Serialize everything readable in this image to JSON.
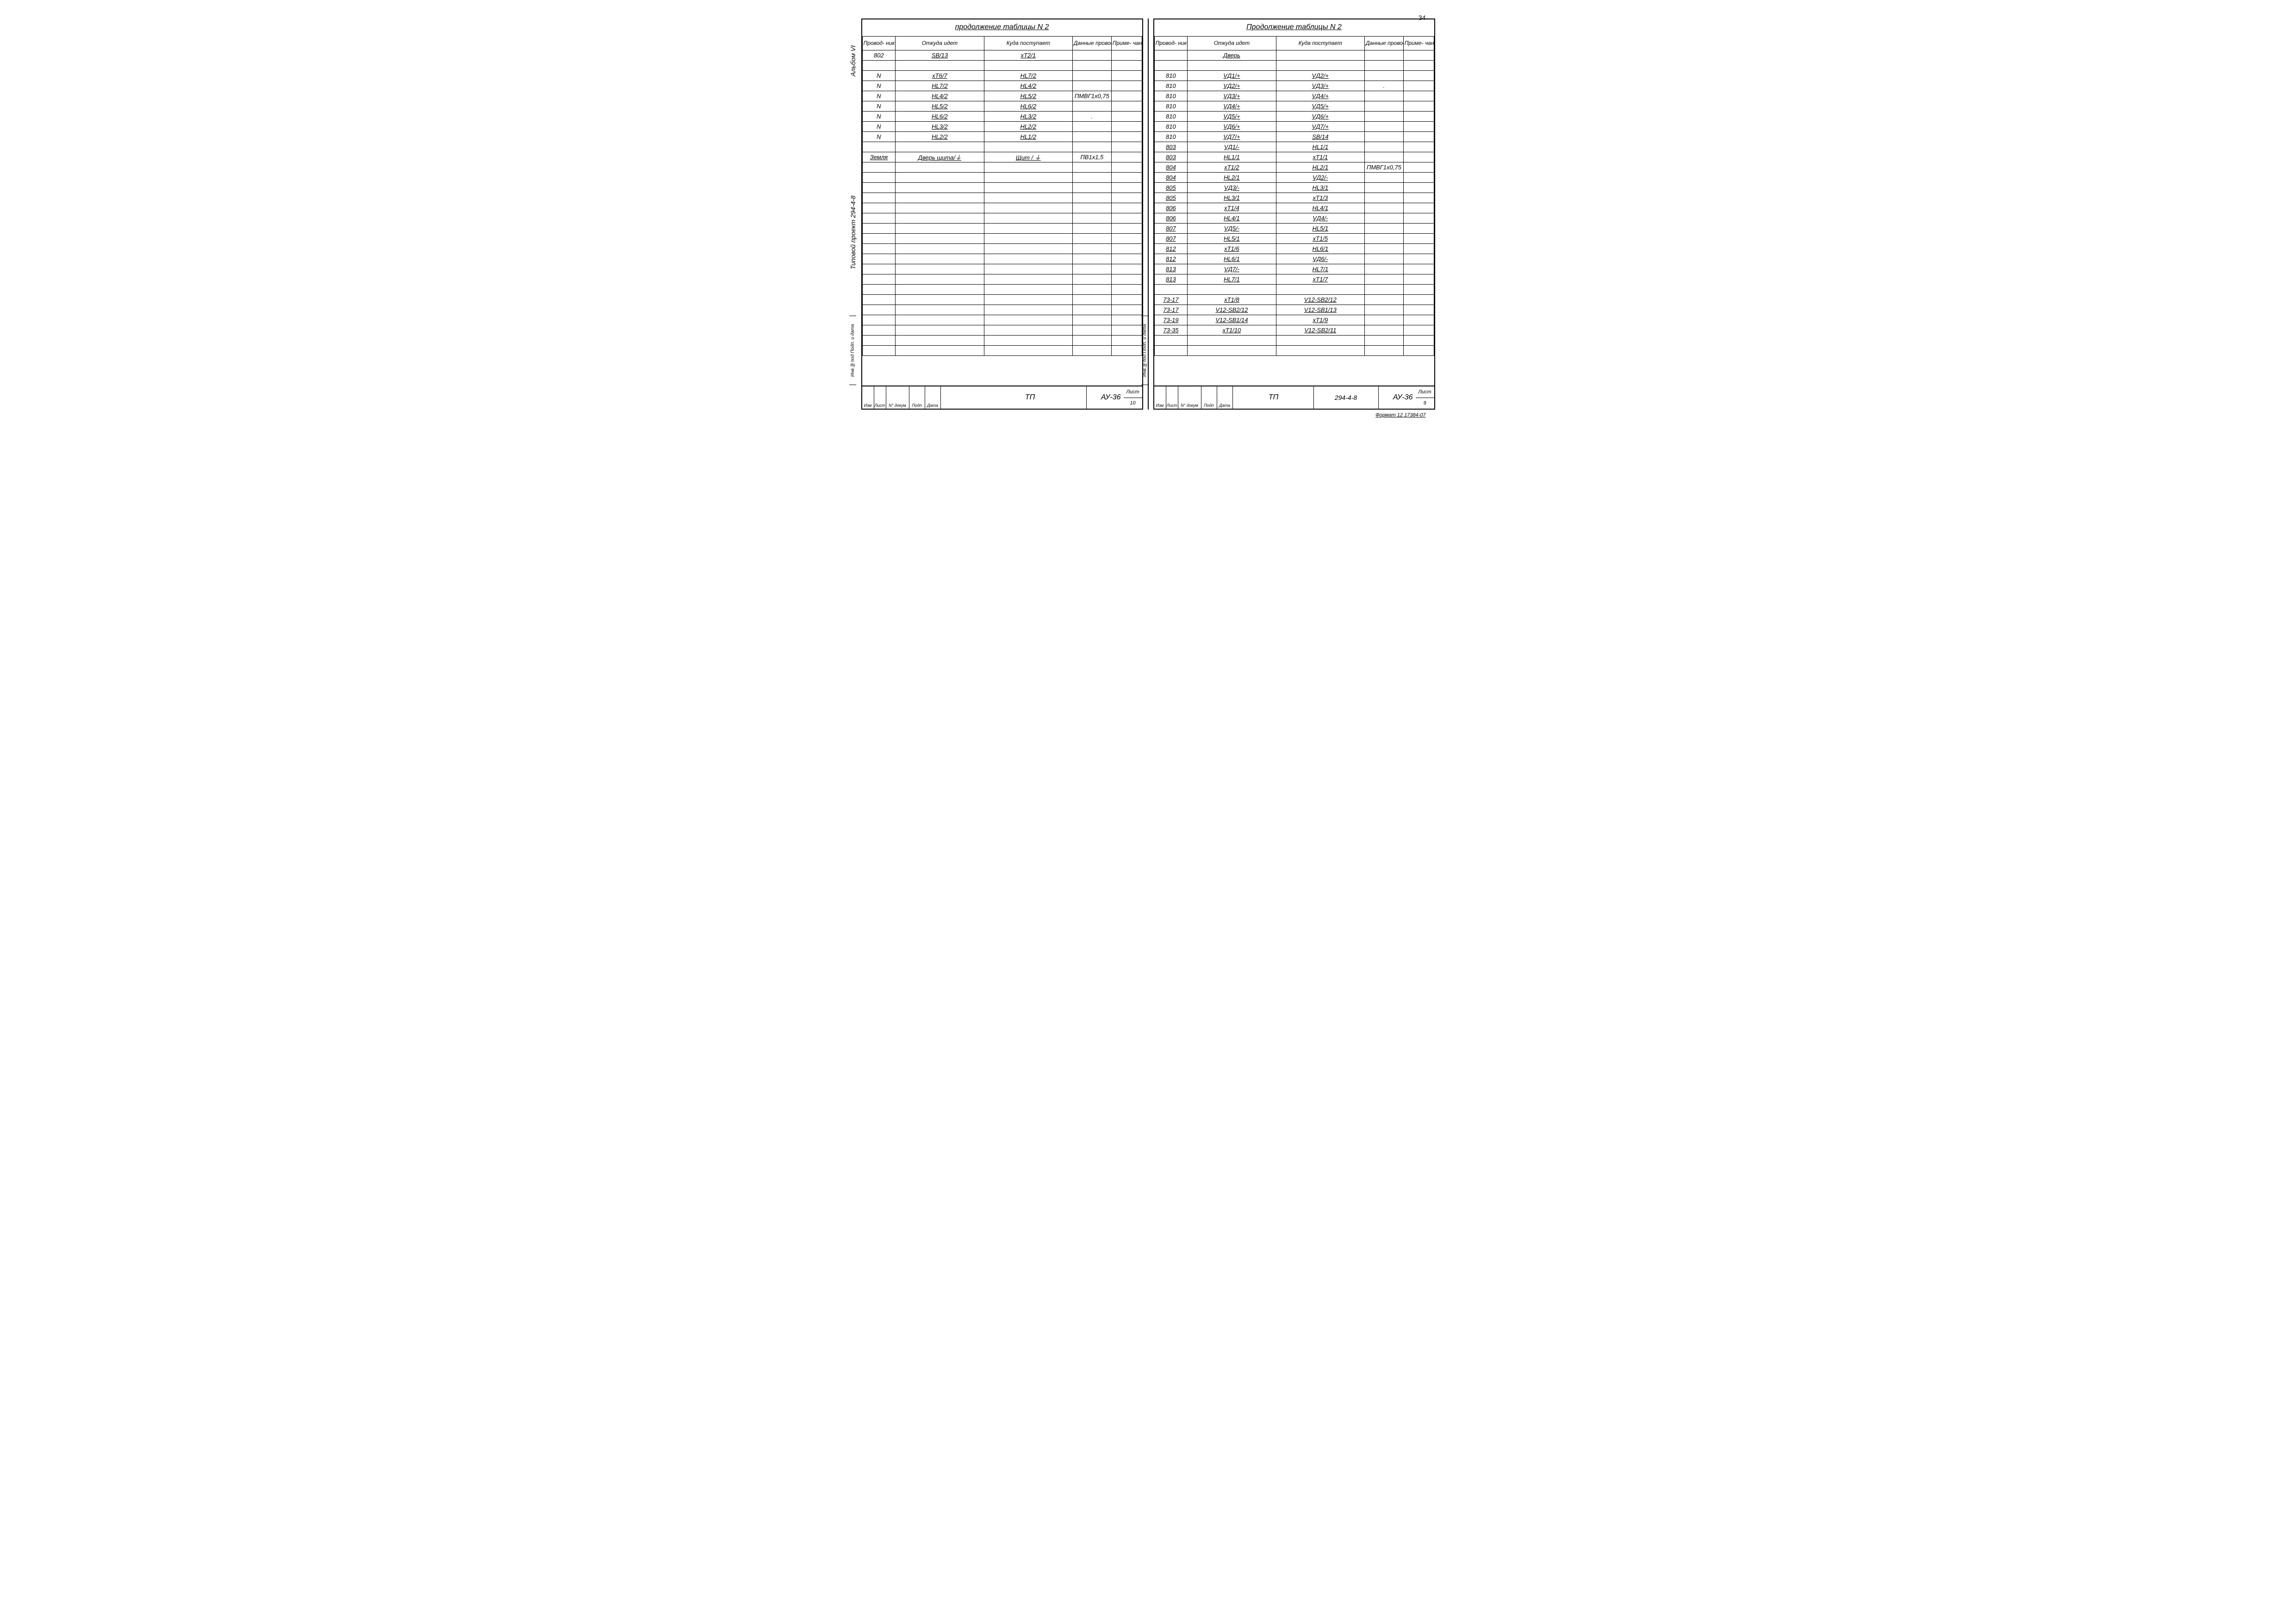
{
  "pageNumTop": "34",
  "footerNote": "Формат 12\n17384-07",
  "leftPanel": {
    "vText1": "Альбом VI",
    "vText2": "Типовой проект 294-4-8",
    "vText3": "Инв.№под Подп. и дата",
    "caption": "продолжение таблицы N 2",
    "headers": [
      "Провод-\nник",
      "Откуда идет",
      "Куда поступает",
      "Данные\nпровода",
      "Приме-\nчание"
    ],
    "rows": [
      {
        "c": [
          "802",
          "SB/13",
          "xT2/1",
          "",
          ""
        ],
        "u": [
          0,
          1,
          1,
          0,
          0
        ]
      },
      {
        "c": [
          "",
          "",
          "",
          "",
          ""
        ],
        "u": [
          0,
          0,
          0,
          0,
          0
        ]
      },
      {
        "c": [
          "N",
          "xT6/7",
          "HL7/2",
          "",
          ""
        ],
        "u": [
          0,
          1,
          1,
          0,
          0
        ]
      },
      {
        "c": [
          "N",
          "HL7/2",
          "HL4/2",
          "",
          ""
        ],
        "u": [
          0,
          1,
          1,
          0,
          0
        ]
      },
      {
        "c": [
          "N",
          "HL4/2",
          "HL5/2",
          "ПМВГ1x0,75",
          ""
        ],
        "u": [
          0,
          1,
          1,
          0,
          0
        ]
      },
      {
        "c": [
          "N",
          "HL5/2",
          "HL6/2",
          "",
          ""
        ],
        "u": [
          0,
          1,
          1,
          0,
          0
        ]
      },
      {
        "c": [
          "N",
          "HL6/2",
          "HL3/2",
          ".",
          ""
        ],
        "u": [
          0,
          1,
          1,
          0,
          0
        ]
      },
      {
        "c": [
          "N",
          "HL3/2",
          "HL2/2",
          "",
          ""
        ],
        "u": [
          0,
          1,
          1,
          0,
          0
        ]
      },
      {
        "c": [
          "N",
          "HL2/2",
          "HL1/2",
          "",
          ""
        ],
        "u": [
          0,
          1,
          1,
          0,
          0
        ]
      },
      {
        "c": [
          "",
          "",
          "",
          "",
          ""
        ],
        "u": [
          0,
          0,
          0,
          0,
          0
        ]
      },
      {
        "c": [
          "Земля",
          "Дверь щита/⏚",
          "Щит / ⏚",
          "ПВ1x1,5",
          ""
        ],
        "u": [
          1,
          1,
          1,
          0,
          0
        ]
      },
      {
        "c": [
          "",
          "",
          "",
          "",
          ""
        ],
        "u": [
          0,
          0,
          0,
          0,
          0
        ]
      },
      {
        "c": [
          "",
          "",
          "",
          "",
          ""
        ],
        "u": [
          0,
          0,
          0,
          0,
          0
        ]
      },
      {
        "c": [
          "",
          "",
          "",
          "",
          ""
        ],
        "u": [
          0,
          0,
          0,
          0,
          0
        ]
      },
      {
        "c": [
          "",
          "",
          "",
          "",
          ""
        ],
        "u": [
          0,
          0,
          0,
          0,
          0
        ]
      },
      {
        "c": [
          "",
          "",
          "",
          "",
          ""
        ],
        "u": [
          0,
          0,
          0,
          0,
          0
        ]
      },
      {
        "c": [
          "",
          "",
          "",
          "",
          ""
        ],
        "u": [
          0,
          0,
          0,
          0,
          0
        ]
      },
      {
        "c": [
          "",
          "",
          "",
          "",
          ""
        ],
        "u": [
          0,
          0,
          0,
          0,
          0
        ]
      },
      {
        "c": [
          "",
          "",
          "",
          "",
          ""
        ],
        "u": [
          0,
          0,
          0,
          0,
          0
        ]
      },
      {
        "c": [
          "",
          "",
          "",
          "",
          ""
        ],
        "u": [
          0,
          0,
          0,
          0,
          0
        ]
      },
      {
        "c": [
          "",
          "",
          "",
          "",
          ""
        ],
        "u": [
          0,
          0,
          0,
          0,
          0
        ]
      },
      {
        "c": [
          "",
          "",
          "",
          "",
          ""
        ],
        "u": [
          0,
          0,
          0,
          0,
          0
        ]
      },
      {
        "c": [
          "",
          "",
          "",
          "",
          ""
        ],
        "u": [
          0,
          0,
          0,
          0,
          0
        ]
      },
      {
        "c": [
          "",
          "",
          "",
          "",
          ""
        ],
        "u": [
          0,
          0,
          0,
          0,
          0
        ]
      },
      {
        "c": [
          "",
          "",
          "",
          "",
          ""
        ],
        "u": [
          0,
          0,
          0,
          0,
          0
        ]
      },
      {
        "c": [
          "",
          "",
          "",
          "",
          ""
        ],
        "u": [
          0,
          0,
          0,
          0,
          0
        ]
      },
      {
        "c": [
          "",
          "",
          "",
          "",
          ""
        ],
        "u": [
          0,
          0,
          0,
          0,
          0
        ]
      },
      {
        "c": [
          "",
          "",
          "",
          "",
          ""
        ],
        "u": [
          0,
          0,
          0,
          0,
          0
        ]
      },
      {
        "c": [
          "",
          "",
          "",
          "",
          ""
        ],
        "u": [
          0,
          0,
          0,
          0,
          0
        ]
      },
      {
        "c": [
          "",
          "",
          "",
          "",
          ""
        ],
        "u": [
          0,
          0,
          0,
          0,
          0
        ]
      }
    ],
    "titleBlock": {
      "smallCells": [
        "Изм",
        "Лист",
        "N° докум",
        "Подп",
        "Дата"
      ],
      "main": "ТП",
      "proj": "",
      "code": "АУ-36",
      "sheetLabel": "Лист",
      "sheetNum": "10"
    }
  },
  "rightPanel": {
    "vText3": "Инв.№под Подп. и дата",
    "caption": "Продолжение таблицы N 2",
    "headers": [
      "Провод-\nник",
      "Откуда идет",
      "Куда поступает",
      "Данные\nпровода",
      "Приме-\nчание"
    ],
    "rows": [
      {
        "c": [
          "",
          "Дверь",
          "",
          "",
          ""
        ],
        "u": [
          0,
          1,
          0,
          0,
          0
        ]
      },
      {
        "c": [
          "",
          "",
          "",
          "",
          ""
        ],
        "u": [
          0,
          0,
          0,
          0,
          0
        ]
      },
      {
        "c": [
          "810",
          "VД1/+",
          "VД2/+",
          "",
          ""
        ],
        "u": [
          0,
          1,
          1,
          0,
          0
        ]
      },
      {
        "c": [
          "810",
          "VД2/+",
          "VД3/+",
          ".",
          ""
        ],
        "u": [
          0,
          1,
          1,
          0,
          0
        ]
      },
      {
        "c": [
          "810",
          "VД3/+",
          "VД4/+",
          "",
          ""
        ],
        "u": [
          0,
          1,
          1,
          0,
          0
        ]
      },
      {
        "c": [
          "810",
          "VД4/+",
          "VД5/+",
          "",
          ""
        ],
        "u": [
          0,
          1,
          1,
          0,
          0
        ]
      },
      {
        "c": [
          "810",
          "VД5/+",
          "VД6/+",
          "",
          ""
        ],
        "u": [
          0,
          1,
          1,
          0,
          0
        ]
      },
      {
        "c": [
          "810",
          "VД6/+",
          "VД7/+",
          "",
          ""
        ],
        "u": [
          0,
          1,
          1,
          0,
          0
        ]
      },
      {
        "c": [
          "810",
          "VД7/+",
          "SB/14",
          "",
          ""
        ],
        "u": [
          0,
          1,
          1,
          0,
          0
        ]
      },
      {
        "c": [
          "803",
          "VД1/-",
          "HL1/1",
          "",
          ""
        ],
        "u": [
          1,
          1,
          1,
          0,
          0
        ]
      },
      {
        "c": [
          "803",
          "HL1/1",
          "xT1/1",
          "",
          ""
        ],
        "u": [
          1,
          1,
          1,
          0,
          0
        ]
      },
      {
        "c": [
          "804",
          "xT1/2",
          "HL2/1",
          "ПМВГ1x0,75",
          ""
        ],
        "u": [
          1,
          1,
          1,
          0,
          0
        ]
      },
      {
        "c": [
          "804",
          "HL2/1",
          "VД2/-",
          "",
          ""
        ],
        "u": [
          1,
          1,
          1,
          0,
          0
        ]
      },
      {
        "c": [
          "805",
          "VД3/-",
          "HL3/1",
          "",
          ""
        ],
        "u": [
          1,
          1,
          1,
          0,
          0
        ]
      },
      {
        "c": [
          "805",
          "HL3/1",
          "xT1/3",
          "",
          ""
        ],
        "u": [
          1,
          1,
          1,
          0,
          0
        ]
      },
      {
        "c": [
          "806",
          "xT1/4",
          "HL4/1",
          "",
          ""
        ],
        "u": [
          1,
          1,
          1,
          0,
          0
        ]
      },
      {
        "c": [
          "806",
          "HL4/1",
          "VД4/-",
          "",
          ""
        ],
        "u": [
          1,
          1,
          1,
          0,
          0
        ]
      },
      {
        "c": [
          "807",
          "VД5/-",
          "HL5/1",
          "",
          ""
        ],
        "u": [
          1,
          1,
          1,
          0,
          0
        ]
      },
      {
        "c": [
          "807",
          "HL5/1",
          "xT1/5",
          "",
          ""
        ],
        "u": [
          1,
          1,
          1,
          0,
          0
        ]
      },
      {
        "c": [
          "812",
          "xT1/6",
          "HL6/1",
          "",
          ""
        ],
        "u": [
          1,
          1,
          1,
          0,
          0
        ]
      },
      {
        "c": [
          "812",
          "HL6/1",
          "VД6/-",
          "",
          ""
        ],
        "u": [
          1,
          1,
          1,
          0,
          0
        ]
      },
      {
        "c": [
          "813",
          "VД7/-",
          "HL7/1",
          "",
          ""
        ],
        "u": [
          1,
          1,
          1,
          0,
          0
        ]
      },
      {
        "c": [
          "813",
          "HL7/1",
          "xT1/7",
          "",
          ""
        ],
        "u": [
          1,
          1,
          1,
          0,
          0
        ]
      },
      {
        "c": [
          "",
          "",
          "",
          "",
          ""
        ],
        "u": [
          0,
          0,
          0,
          0,
          0
        ]
      },
      {
        "c": [
          "73-17",
          "xT1/8",
          "V12-SB2/12",
          "",
          ""
        ],
        "u": [
          1,
          1,
          1,
          0,
          0
        ]
      },
      {
        "c": [
          "73-17",
          "V12-SB2/12",
          "V12-SB1/13",
          "",
          ""
        ],
        "u": [
          1,
          1,
          1,
          0,
          0
        ]
      },
      {
        "c": [
          "73-19",
          "V12-SB1/14",
          "xT1/9",
          "",
          ""
        ],
        "u": [
          1,
          1,
          1,
          0,
          0
        ]
      },
      {
        "c": [
          "73-35",
          "xT1/10",
          "V12-SB2/11",
          "",
          ""
        ],
        "u": [
          1,
          1,
          1,
          0,
          0
        ]
      },
      {
        "c": [
          "",
          "",
          "",
          "",
          ""
        ],
        "u": [
          0,
          0,
          0,
          0,
          0
        ]
      },
      {
        "c": [
          "",
          "",
          "",
          "",
          ""
        ],
        "u": [
          0,
          0,
          0,
          0,
          0
        ]
      }
    ],
    "titleBlock": {
      "smallCells": [
        "Изм",
        "Лист",
        "N° докум",
        "Подп",
        "Дата"
      ],
      "main": "ТП",
      "proj": "294-4-8",
      "code": "АУ-36",
      "sheetLabel": "Лист",
      "sheetNum": "9"
    }
  }
}
